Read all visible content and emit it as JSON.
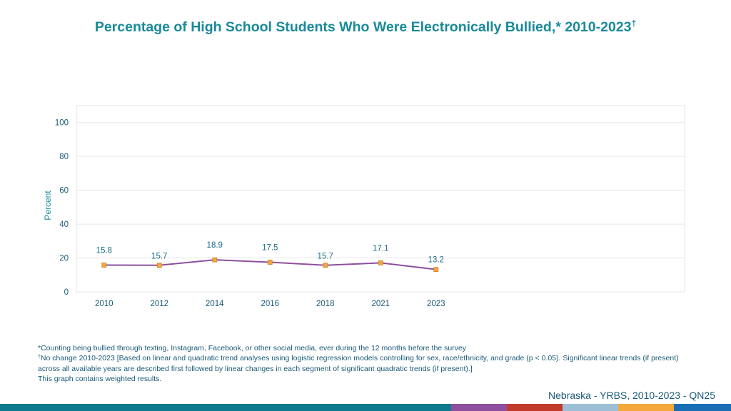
{
  "title": {
    "text": "Percentage of High School Students Who Were Electronically Bullied,* 2010-2023",
    "mark": "†"
  },
  "notes": {
    "line1": "*Counting being bullied through texting, Instagram, Facebook, or other social media, ever during the 12 months before the survey",
    "line2_mark": "†",
    "line2": "No change 2010-2023 [Based on linear and quadratic trend analyses using logistic regression models controlling for sex, race/ethnicity, and grade (p < 0.05). Significant linear trends (if present) across all available years are described first followed by linear changes in each segment of significant quadratic trends (if present).]",
    "line3": "This graph contains weighted results."
  },
  "source": "Nebraska - YRBS, 2010-2023 - QN25",
  "colors": {
    "title": "#1a8a99",
    "line": "#8e4f9e",
    "marker_fill": "#f5a83a",
    "marker_stroke": "#c9812a",
    "data_label": "#1a6d8a",
    "axis_text": "#1a5a78",
    "grid": "#e6e6e6",
    "footer": [
      "#0e7a8e",
      "#8e4f9e",
      "#c23b2a",
      "#9cbfd6",
      "#f5a83a",
      "#1a6eb4"
    ]
  },
  "chart_data": {
    "type": "line",
    "title": "Percentage of High School Students Who Were Electronically Bullied,* 2010-2023†",
    "ylabel": "Percent",
    "xlabel": "",
    "ylim": [
      0,
      110
    ],
    "yticks": [
      0,
      20,
      40,
      60,
      80,
      100
    ],
    "grid": true,
    "categories": [
      "2010",
      "2012",
      "2014",
      "2016",
      "2018",
      "2021",
      "2023"
    ],
    "series": [
      {
        "values": [
          15.8,
          15.7,
          18.9,
          17.5,
          15.7,
          17.1,
          13.2
        ],
        "labels": [
          "15.8",
          "15.7",
          "18.9",
          "17.5",
          "15.7",
          "17.1",
          "13.2"
        ]
      }
    ]
  }
}
